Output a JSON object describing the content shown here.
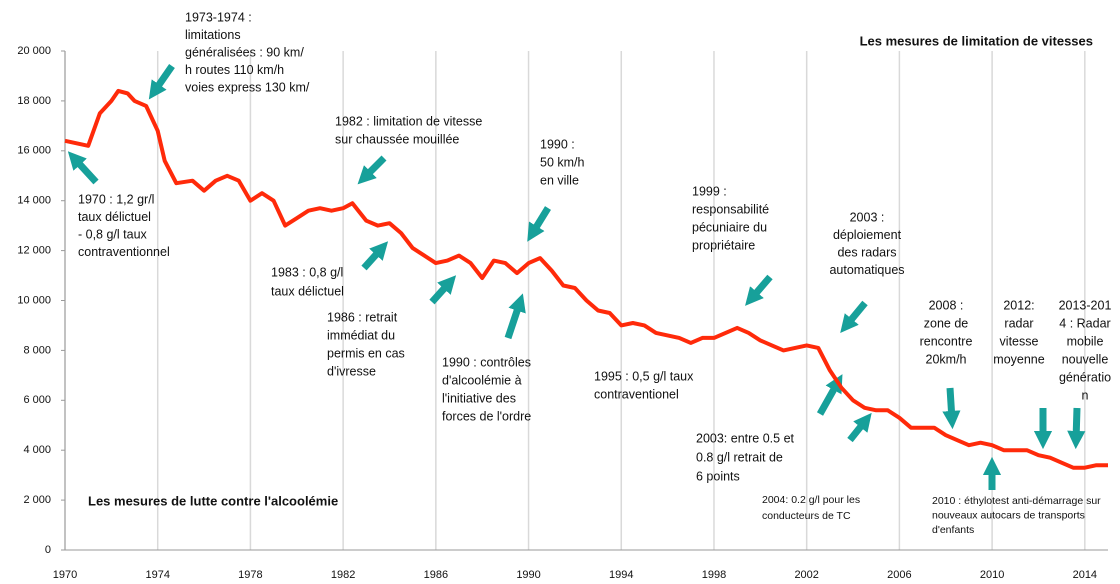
{
  "chart_data": {
    "type": "line",
    "color": "#ff2a0a",
    "grid": true,
    "xlim": [
      1970,
      2015
    ],
    "ylim": [
      0,
      20000
    ],
    "xticks": [
      1970,
      1974,
      1978,
      1982,
      1986,
      1990,
      1994,
      1998,
      2002,
      2006,
      2010,
      2014
    ],
    "yticks": [
      {
        "value": 0,
        "label": "0"
      },
      {
        "value": 2000,
        "label": "2 000"
      },
      {
        "value": 4000,
        "label": "4 000"
      },
      {
        "value": 6000,
        "label": "6 000"
      },
      {
        "value": 8000,
        "label": "8 000"
      },
      {
        "value": 10000,
        "label": "10 000"
      },
      {
        "value": 12000,
        "label": "12 000"
      },
      {
        "value": 14000,
        "label": "14 000"
      },
      {
        "value": 16000,
        "label": "16 000"
      },
      {
        "value": 18000,
        "label": "18 000"
      },
      {
        "value": 20000,
        "label": "20 000"
      }
    ],
    "x": [
      1970,
      1971,
      1971.5,
      1972,
      1972.3,
      1972.7,
      1973,
      1973.5,
      1974,
      1974.3,
      1974.8,
      1975.5,
      1976,
      1976.5,
      1977,
      1977.5,
      1978,
      1978.5,
      1979,
      1979.5,
      1980,
      1980.5,
      1981,
      1981.5,
      1982,
      1982.4,
      1983,
      1983.5,
      1984,
      1984.5,
      1985,
      1985.5,
      1986,
      1986.5,
      1987,
      1987.5,
      1988,
      1988.5,
      1989,
      1989.5,
      1990,
      1990.5,
      1991,
      1991.5,
      1992,
      1992.5,
      1993,
      1993.5,
      1994,
      1994.5,
      1995,
      1995.5,
      1996,
      1996.5,
      1997,
      1997.5,
      1998,
      1998.5,
      1999,
      1999.5,
      2000,
      2000.5,
      2001,
      2001.5,
      2002,
      2002.5,
      2003,
      2003.5,
      2004,
      2004.5,
      2005,
      2005.5,
      2006,
      2006.5,
      2007,
      2007.5,
      2008,
      2008.5,
      2009,
      2009.5,
      2010,
      2010.5,
      2011,
      2011.5,
      2012,
      2012.5,
      2013,
      2013.5,
      2014,
      2014.5,
      2015
    ],
    "values": [
      16400,
      16200,
      17500,
      18000,
      18400,
      18300,
      18000,
      17800,
      16800,
      15600,
      14700,
      14800,
      14400,
      14800,
      15000,
      14800,
      14000,
      14300,
      14000,
      13000,
      13300,
      13600,
      13700,
      13600,
      13700,
      13900,
      13200,
      13000,
      13100,
      12700,
      12100,
      11800,
      11500,
      11600,
      11800,
      11500,
      10900,
      11600,
      11500,
      11100,
      11500,
      11700,
      11200,
      10600,
      10500,
      10000,
      9600,
      9500,
      9000,
      9100,
      9000,
      8700,
      8600,
      8500,
      8300,
      8500,
      8500,
      8700,
      8900,
      8700,
      8400,
      8200,
      8000,
      8100,
      8200,
      8100,
      7200,
      6500,
      6000,
      5700,
      5600,
      5600,
      5300,
      4900,
      4900,
      4900,
      4600,
      4400,
      4200,
      4300,
      4200,
      4000,
      4000,
      4000,
      3800,
      3700,
      3500,
      3300,
      3300,
      3400,
      3400
    ],
    "annotations": [
      [
        "1973-1974 :",
        "limitations",
        "généralisées : 90 km/",
        "h routes 110 km/h",
        "voies express 130 km/"
      ],
      [
        "1970 : 1,2 gr/l",
        "taux délictuel",
        "- 0,8 g/l  taux",
        "contraventionnel"
      ],
      [
        "1982 : limitation de vitesse",
        "sur chaussée mouillée"
      ],
      [
        "1990 :",
        "50 km/h",
        "en ville"
      ],
      [
        "1999 :",
        "responsabilité",
        "pécuniaire du",
        "propriétaire"
      ],
      [
        "2003 :",
        "déploiement",
        "des  radars",
        "automatiques"
      ],
      [
        "1983 : 0,8 g/l",
        "taux délictuel"
      ],
      [
        "1986 : retrait",
        "immédiat du",
        "permis  en cas",
        "d'ivresse"
      ],
      [
        "1990 : contrôles",
        "d'alcoolémie à",
        "l'initiative des",
        "forces de l'ordre"
      ],
      [
        "1995 : 0,5 g/l  taux",
        "contraventionel"
      ],
      [
        "2008 :",
        "zone de",
        "rencontre",
        "20km/h"
      ],
      [
        "2012:",
        "radar",
        "vitesse",
        "moyenne"
      ],
      [
        "2013-201",
        "4 : Radar",
        "mobile",
        "nouvelle",
        "génératio",
        "n"
      ],
      [
        "2003: entre 0.5 et",
        "0.8 g/l  retrait de",
        "6 points"
      ],
      [
        "2004: 0.2 g/l  pour les",
        "conducteurs de TC"
      ],
      [
        "2010 : éthylotest anti-démarrage sur",
        "nouveaux autocars de transports",
        "d'enfants"
      ],
      [
        "Les mesures de limitation de vitesses"
      ],
      [
        "Les mesures de lutte contre l'alcoolémie"
      ]
    ]
  }
}
